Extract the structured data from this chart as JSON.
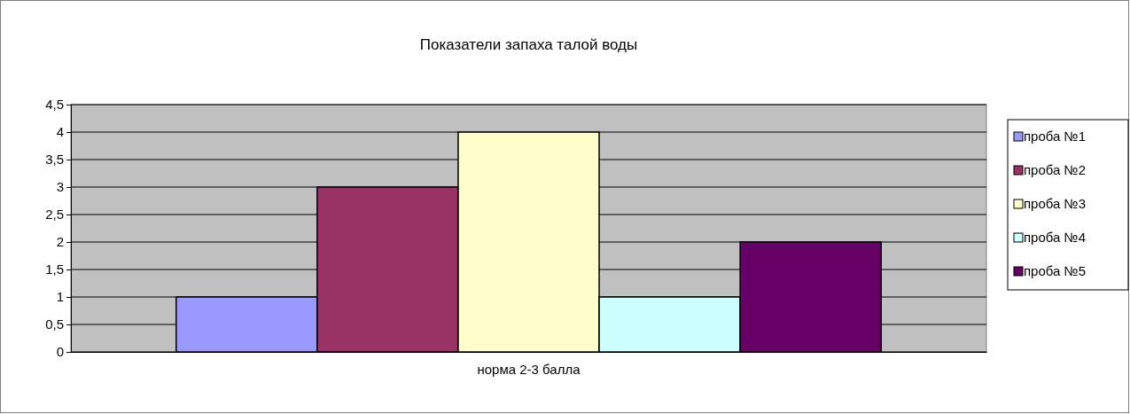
{
  "chart_data": {
    "type": "bar",
    "title": "Показатели запаха талой воды",
    "categories": [
      "норма 2-3 балла"
    ],
    "series": [
      {
        "name": "проба №1",
        "color": "#9999ff",
        "values": [
          1
        ]
      },
      {
        "name": "проба №2",
        "color": "#993366",
        "values": [
          3
        ]
      },
      {
        "name": "проба №3",
        "color": "#ffffcc",
        "values": [
          4
        ]
      },
      {
        "name": "проба №4",
        "color": "#ccffff",
        "values": [
          1
        ]
      },
      {
        "name": "проба №5",
        "color": "#660066",
        "values": [
          2
        ]
      }
    ],
    "ylim": [
      0,
      4.5
    ],
    "yticks": [
      0,
      {
        "value": 0.5,
        "label": "0,5"
      },
      1,
      {
        "value": 1.5,
        "label": "1,5"
      },
      2,
      {
        "value": 2.5,
        "label": "2,5"
      },
      3,
      {
        "value": 3.5,
        "label": "3,5"
      },
      4,
      {
        "value": 4.5,
        "label": "4,5"
      }
    ],
    "grid": "y",
    "legend": "right"
  }
}
